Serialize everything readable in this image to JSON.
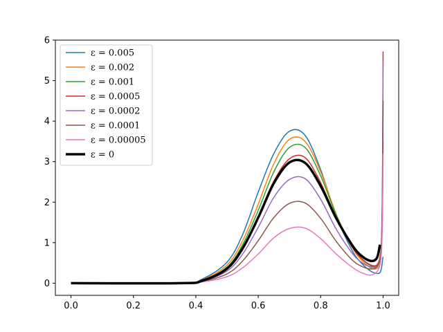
{
  "chart_data": {
    "type": "line",
    "title": "",
    "xlabel": "",
    "ylabel": "",
    "xlim": [
      -0.05,
      1.05
    ],
    "ylim": [
      -0.3,
      6.0
    ],
    "xticks": [
      0.0,
      0.2,
      0.4,
      0.6,
      0.8,
      1.0
    ],
    "xtick_labels": [
      "0.0",
      "0.2",
      "0.4",
      "0.6",
      "0.8",
      "1.0"
    ],
    "yticks": [
      0,
      1,
      2,
      3,
      4,
      5,
      6
    ],
    "ytick_labels": [
      "0",
      "1",
      "2",
      "3",
      "4",
      "5",
      "6"
    ],
    "grid": false,
    "legend_position": "top-left",
    "series": [
      {
        "name": "ε = 0.005",
        "color": "#1f77b4",
        "line_width": 1.5,
        "x": [
          0.0,
          0.35,
          0.42,
          0.5,
          0.55,
          0.6,
          0.65,
          0.7,
          0.75,
          0.8,
          0.85,
          0.9,
          0.93,
          0.96,
          0.98,
          0.99,
          0.995,
          0.998,
          1.0
        ],
        "y": [
          0.0,
          0.0,
          0.1,
          0.52,
          1.2,
          2.25,
          3.2,
          3.75,
          3.65,
          2.8,
          1.65,
          0.82,
          0.5,
          0.3,
          0.24,
          0.26,
          0.38,
          0.55,
          0.65
        ]
      },
      {
        "name": "ε = 0.002",
        "color": "#ff7f0e",
        "line_width": 1.5,
        "x": [
          0.0,
          0.35,
          0.42,
          0.5,
          0.55,
          0.6,
          0.65,
          0.7,
          0.75,
          0.8,
          0.85,
          0.9,
          0.93,
          0.96,
          0.98,
          0.99,
          0.995,
          0.998,
          1.0
        ],
        "y": [
          0.0,
          0.0,
          0.08,
          0.45,
          1.05,
          1.95,
          2.95,
          3.55,
          3.5,
          2.75,
          1.7,
          0.9,
          0.58,
          0.38,
          0.36,
          0.5,
          0.85,
          1.8,
          3.5
        ]
      },
      {
        "name": "ε = 0.001",
        "color": "#2ca02c",
        "line_width": 1.5,
        "x": [
          0.0,
          0.35,
          0.42,
          0.5,
          0.55,
          0.6,
          0.65,
          0.7,
          0.75,
          0.8,
          0.85,
          0.9,
          0.93,
          0.96,
          0.98,
          0.99,
          0.995,
          0.998,
          1.0
        ],
        "y": [
          0.0,
          0.0,
          0.07,
          0.4,
          0.95,
          1.8,
          2.75,
          3.35,
          3.35,
          2.65,
          1.68,
          0.92,
          0.62,
          0.43,
          0.42,
          0.6,
          1.0,
          2.2,
          4.5
        ]
      },
      {
        "name": "ε = 0.0005",
        "color": "#d62728",
        "line_width": 1.5,
        "x": [
          0.0,
          0.35,
          0.42,
          0.5,
          0.55,
          0.6,
          0.65,
          0.7,
          0.75,
          0.8,
          0.85,
          0.9,
          0.93,
          0.96,
          0.98,
          0.99,
          0.995,
          0.998,
          1.0
        ],
        "y": [
          0.0,
          0.0,
          0.06,
          0.36,
          0.86,
          1.65,
          2.52,
          3.07,
          3.1,
          2.48,
          1.6,
          0.9,
          0.62,
          0.45,
          0.45,
          0.65,
          1.1,
          2.6,
          5.72
        ]
      },
      {
        "name": "ε = 0.0002",
        "color": "#9467bd",
        "line_width": 1.5,
        "x": [
          0.0,
          0.35,
          0.42,
          0.5,
          0.55,
          0.6,
          0.65,
          0.7,
          0.75,
          0.8,
          0.85,
          0.9,
          0.93,
          0.96,
          0.98,
          0.99,
          0.995,
          0.998,
          1.0
        ],
        "y": [
          0.0,
          0.0,
          0.05,
          0.3,
          0.72,
          1.38,
          2.12,
          2.56,
          2.58,
          2.07,
          1.33,
          0.75,
          0.52,
          0.4,
          0.42,
          0.62,
          1.0,
          2.4,
          5.5
        ]
      },
      {
        "name": "ε = 0.0001",
        "color": "#8c564b",
        "line_width": 1.5,
        "x": [
          0.0,
          0.35,
          0.42,
          0.5,
          0.55,
          0.6,
          0.65,
          0.7,
          0.75,
          0.8,
          0.85,
          0.9,
          0.93,
          0.96,
          0.98,
          0.99,
          0.995,
          0.998,
          1.0
        ],
        "y": [
          0.0,
          0.0,
          0.04,
          0.23,
          0.55,
          1.05,
          1.62,
          1.97,
          1.98,
          1.6,
          1.03,
          0.58,
          0.42,
          0.35,
          0.4,
          0.6,
          1.0,
          2.2,
          4.5
        ]
      },
      {
        "name": "ε = 0.00005",
        "color": "#e377c2",
        "line_width": 1.5,
        "x": [
          0.0,
          0.35,
          0.42,
          0.5,
          0.55,
          0.6,
          0.65,
          0.7,
          0.75,
          0.8,
          0.85,
          0.9,
          0.93,
          0.96,
          0.98,
          0.99,
          0.995,
          0.998,
          1.0
        ],
        "y": [
          0.0,
          0.0,
          0.03,
          0.16,
          0.38,
          0.72,
          1.12,
          1.35,
          1.36,
          1.1,
          0.72,
          0.4,
          0.26,
          0.2,
          0.28,
          0.45,
          0.8,
          1.6,
          3.2
        ]
      },
      {
        "name": "ε = 0",
        "color": "#000000",
        "line_width": 3.5,
        "x": [
          0.0,
          0.35,
          0.42,
          0.5,
          0.55,
          0.6,
          0.65,
          0.7,
          0.75,
          0.8,
          0.85,
          0.9,
          0.93,
          0.96,
          0.98,
          0.99
        ],
        "y": [
          0.0,
          0.0,
          0.06,
          0.36,
          0.86,
          1.62,
          2.47,
          2.98,
          2.97,
          2.4,
          1.6,
          0.95,
          0.68,
          0.55,
          0.62,
          0.95
        ]
      }
    ]
  }
}
